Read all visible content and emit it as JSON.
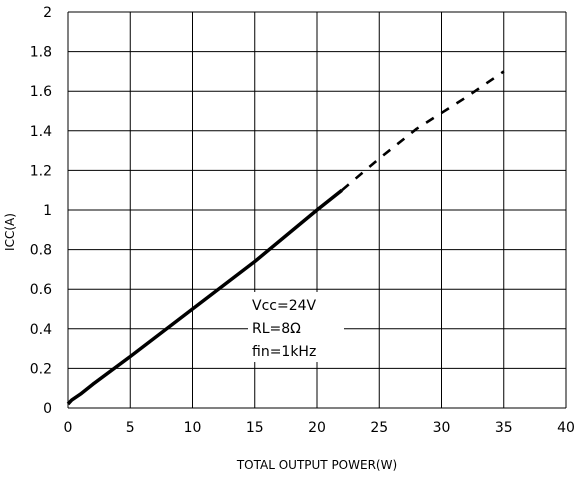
{
  "chart_data": {
    "type": "line",
    "xlabel": "TOTAL OUTPUT POWER(W)",
    "ylabel": "ICC(A)",
    "xlim": [
      0,
      40
    ],
    "ylim": [
      0,
      2
    ],
    "x_ticks": [
      "0",
      "5",
      "10",
      "15",
      "20",
      "25",
      "30",
      "35",
      "40"
    ],
    "y_ticks": [
      "0",
      "0.2",
      "0.4",
      "0.6",
      "0.8",
      "1",
      "1.2",
      "1.4",
      "1.6",
      "1.8",
      "2"
    ],
    "grid": true,
    "series": [
      {
        "style": "solid",
        "color": "#000000",
        "points": [
          [
            0,
            0.02
          ],
          [
            0.3,
            0.04
          ],
          [
            1,
            0.07
          ],
          [
            2,
            0.12
          ],
          [
            5,
            0.26
          ],
          [
            10,
            0.5
          ],
          [
            15,
            0.74
          ],
          [
            20,
            1.0
          ],
          [
            22,
            1.1
          ]
        ]
      },
      {
        "style": "dashed",
        "color": "#000000",
        "points": [
          [
            22,
            1.1
          ],
          [
            25,
            1.26
          ],
          [
            28,
            1.41
          ],
          [
            32,
            1.57
          ],
          [
            35,
            1.7
          ]
        ]
      }
    ],
    "annotations": [
      "Vcc=24V",
      "RL=8Ω",
      "fin=1kHz"
    ]
  }
}
